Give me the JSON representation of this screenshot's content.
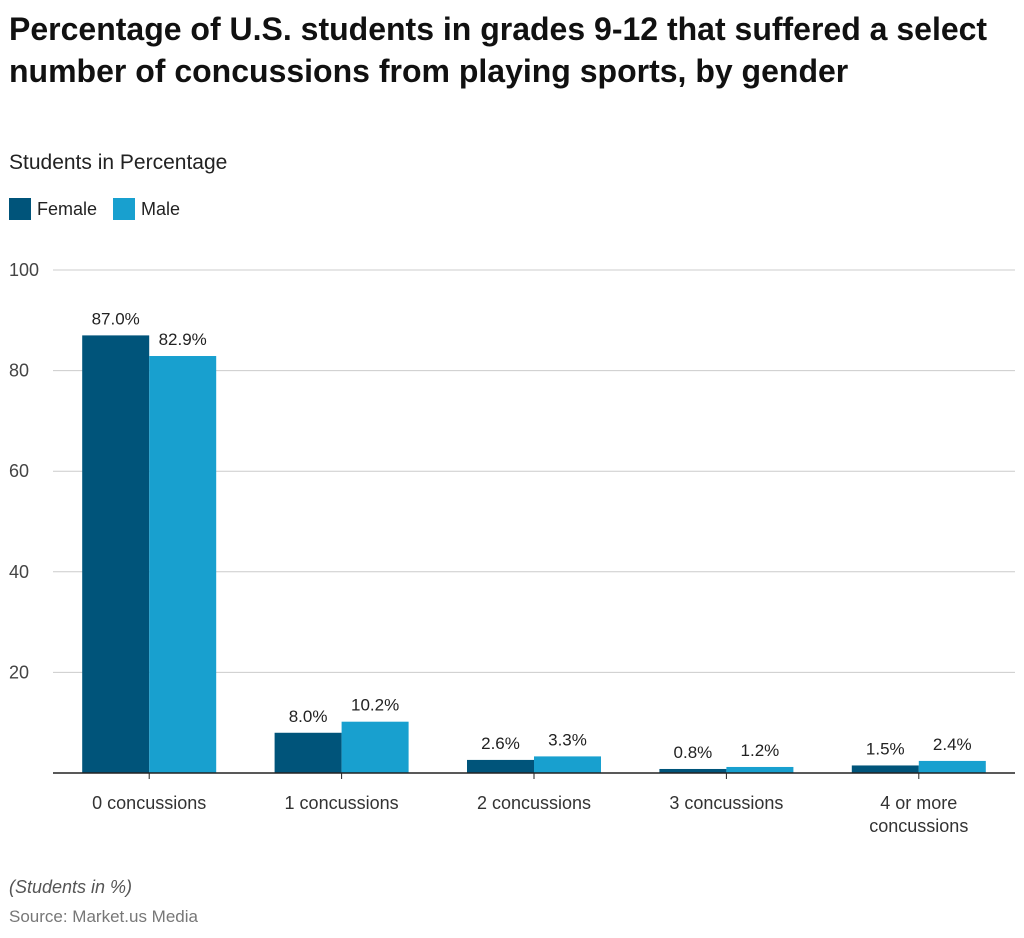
{
  "header": {
    "title": "Percentage of U.S. students in grades 9-12 that suffered a select number of concussions from playing sports, by gender",
    "subtitle": "Students in Percentage"
  },
  "legend": {
    "female": "Female",
    "male": "Male"
  },
  "colors": {
    "female": "#00547a",
    "male": "#18a0cf",
    "grid": "#cccccc",
    "axis": "#222222"
  },
  "chart_data": {
    "type": "bar",
    "title": "Percentage of U.S. students in grades 9-12 that suffered a select number of concussions from playing sports, by gender",
    "ylabel": "Students in Percentage",
    "xlabel": "",
    "ylim": [
      0,
      100
    ],
    "yticks": [
      20,
      40,
      60,
      80,
      100
    ],
    "grid": true,
    "legend_position": "top-left",
    "categories": [
      [
        "0 concussions"
      ],
      [
        "1 concussions"
      ],
      [
        "2 concussions"
      ],
      [
        "3 concussions"
      ],
      [
        "4 or more",
        "concussions"
      ]
    ],
    "series": [
      {
        "name": "Female",
        "values": [
          87.0,
          8.0,
          2.6,
          0.8,
          1.5
        ],
        "labels": [
          "87.0%",
          "8.0%",
          "2.6%",
          "0.8%",
          "1.5%"
        ]
      },
      {
        "name": "Male",
        "values": [
          82.9,
          10.2,
          3.3,
          1.2,
          2.4
        ],
        "labels": [
          "82.9%",
          "10.2%",
          "3.3%",
          "1.2%",
          "2.4%"
        ]
      }
    ]
  },
  "footer": {
    "note": "(Students in %)",
    "source": "Source: Market.us Media"
  }
}
